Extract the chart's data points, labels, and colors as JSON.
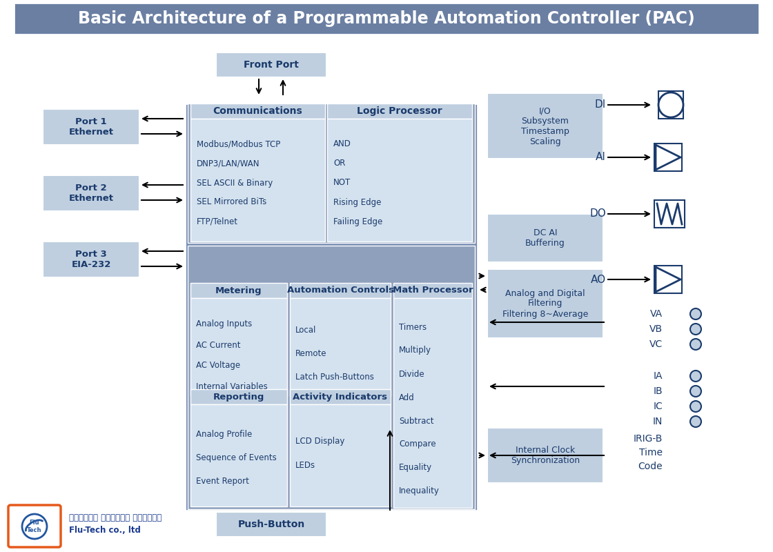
{
  "title": "Basic Architecture of a Programmable Automation Controller (PAC)",
  "title_bg": "#6b7fa3",
  "title_color": "#ffffff",
  "bg_color": "#ffffff",
  "main_bg_color": "#7b8fb5",
  "inner_bg_color": "#8fa0bc",
  "light_box": "#bfcfe0",
  "lighter_box": "#d4e2ef",
  "port_box": "#bfcfe0",
  "right_panel_box": "#bfcfe0",
  "text_dark": "#1a3a6b",
  "text_blue": "#2255a0",
  "front_port": "Front Port",
  "push_button": "Push-Button",
  "comm_title": "Communications",
  "comm_items": [
    "Modbus/Modbus TCP",
    "DNP3/LAN/WAN",
    "SEL ASCII & Binary",
    "SEL Mirrored BiTs",
    "FTP/Telnet"
  ],
  "logic_title": "Logic Processor",
  "logic_items": [
    "AND",
    "OR",
    "NOT",
    "Rising Edge",
    "Failing Edge"
  ],
  "metering_title": "Metering",
  "metering_items": [
    "Analog Inputs",
    "AC Current",
    "AC Voltage",
    "Internal Variables"
  ],
  "automation_title": "Automation Controls",
  "automation_items": [
    "Local",
    "Remote",
    "Latch Push-Buttons"
  ],
  "math_title": "Math Processor",
  "math_items": [
    "Timers",
    "Multiply",
    "Divide",
    "Add",
    "Subtract",
    "Compare",
    "Equality",
    "Inequality"
  ],
  "reporting_title": "Reporting",
  "reporting_items": [
    "Analog Profile",
    "Sequence of Events",
    "Event Report"
  ],
  "activity_title": "Activity Indicators",
  "activity_items": [
    "LCD Display",
    "LEDs"
  ],
  "port1": "Port 1\nEthernet",
  "port2": "Port 2\nEthernet",
  "port3": "Port 3\nEIA-232",
  "io_subsystem": "I/O\nSubsystem\nTimestamp\nScaling",
  "dc_ai": "DC AI\nBuffering",
  "analog_filter": "Analog and Digital\nFiltering\nFiltering 8~Average",
  "internal_clock": "Internal Clock\nSynchronization",
  "va_labels": [
    "VA",
    "VB",
    "VC"
  ],
  "ia_labels": [
    "IA",
    "IB",
    "IC",
    "IN"
  ],
  "irig_labels": [
    "IRIG-B",
    "Time",
    "Code"
  ],
  "di_label": "DI",
  "ai_label": "AI",
  "do_label": "DO",
  "ao_label": "AO",
  "logo_text1": "บริษัท ฟลูเทค จํากัด",
  "logo_text2": "Flu-Tech co., ltd"
}
